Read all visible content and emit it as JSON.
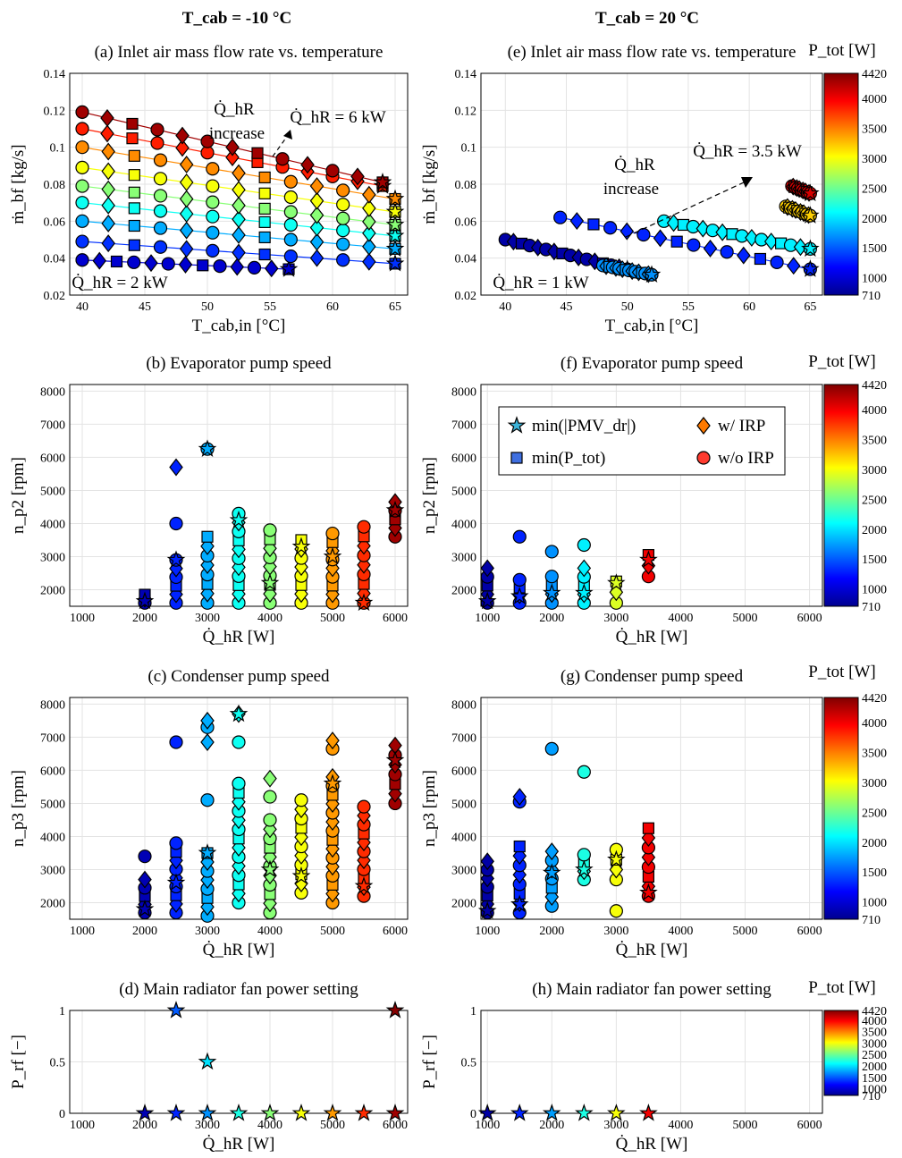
{
  "headers": {
    "left": "T_cab = -10 °C",
    "right": "T_cab = 20 °C"
  },
  "colorbar": {
    "label": "P_tot [W]",
    "min": 710,
    "max": 4420,
    "ticks": [
      "4420",
      "4000",
      "3500",
      "3000",
      "2500",
      "2000",
      "1500",
      "1000",
      "710"
    ]
  },
  "legend": {
    "items": [
      "min(|PMV_dr|)",
      "w/ IRP",
      "min(P_tot)",
      "w/o IRP"
    ]
  },
  "chart_data": [
    {
      "id": "a",
      "type": "scatter",
      "title": "(a) Inlet air mass flow rate vs. temperature",
      "xlabel": "T_cab,in [°C]",
      "ylabel": "ṁ_bf [kg/s]",
      "xlim": [
        39,
        66
      ],
      "ylim": [
        0.02,
        0.14
      ],
      "xticks": [
        40,
        45,
        50,
        55,
        60,
        65
      ],
      "yticks": [
        0.02,
        0.04,
        0.06,
        0.08,
        0.1,
        0.12,
        0.14
      ],
      "annotations": [
        "Q̇_hR increase",
        "Q̇_hR = 6 kW",
        "Q̇_hR = 2 kW"
      ],
      "series": [
        {
          "q": 2000,
          "p": 1000,
          "from": [
            40,
            0.039
          ],
          "to": [
            56.5,
            0.034
          ]
        },
        {
          "q": 2500,
          "p": 1350,
          "from": [
            40,
            0.049
          ],
          "to": [
            65,
            0.037
          ]
        },
        {
          "q": 3000,
          "p": 1800,
          "from": [
            40,
            0.06
          ],
          "to": [
            65,
            0.045
          ]
        },
        {
          "q": 3500,
          "p": 2150,
          "from": [
            40,
            0.07
          ],
          "to": [
            65,
            0.052
          ]
        },
        {
          "q": 4000,
          "p": 2600,
          "from": [
            40,
            0.079
          ],
          "to": [
            65,
            0.058
          ]
        },
        {
          "q": 4500,
          "p": 3000,
          "from": [
            40,
            0.089
          ],
          "to": [
            65,
            0.065
          ]
        },
        {
          "q": 5000,
          "p": 3450,
          "from": [
            40,
            0.1
          ],
          "to": [
            65,
            0.072
          ]
        },
        {
          "q": 5500,
          "p": 3850,
          "from": [
            40,
            0.11
          ],
          "to": [
            64,
            0.079
          ]
        },
        {
          "q": 6000,
          "p": 4300,
          "from": [
            40,
            0.119
          ],
          "to": [
            64,
            0.081
          ]
        }
      ]
    },
    {
      "id": "e",
      "type": "scatter",
      "title": "(e) Inlet air mass flow rate vs. temperature",
      "xlabel": "T_cab,in [°C]",
      "ylabel": "ṁ_bf [kg/s]",
      "xlim": [
        38,
        66
      ],
      "ylim": [
        0.02,
        0.14
      ],
      "xticks": [
        40,
        45,
        50,
        55,
        60,
        65
      ],
      "yticks": [
        0.02,
        0.04,
        0.06,
        0.08,
        0.1,
        0.12,
        0.14
      ],
      "annotations": [
        "Q̇_hR increase",
        "Q̇_hR = 3.5 kW",
        "Q̇_hR = 1 kW"
      ],
      "series": [
        {
          "q": 1000,
          "p": 850,
          "from": [
            40,
            0.05
          ],
          "to": [
            50,
            0.034
          ]
        },
        {
          "q": 1500,
          "p": 1300,
          "from": [
            44.5,
            0.062
          ],
          "to": [
            65,
            0.034
          ]
        },
        {
          "q": 2000,
          "p": 1700,
          "from": [
            48,
            0.036
          ],
          "to": [
            52,
            0.031
          ]
        },
        {
          "q": 2500,
          "p": 2050,
          "from": [
            53,
            0.06
          ],
          "to": [
            65,
            0.045
          ]
        },
        {
          "q": 3000,
          "p": 3200,
          "from": [
            63,
            0.068
          ],
          "to": [
            65,
            0.063
          ]
        },
        {
          "q": 3500,
          "p": 4100,
          "from": [
            63.5,
            0.079
          ],
          "to": [
            65,
            0.075
          ]
        }
      ]
    },
    {
      "id": "b",
      "type": "scatter",
      "title": "(b) Evaporator pump speed",
      "xlabel": "Q̇_hR [W]",
      "ylabel": "n_p2 [rpm]",
      "xlim": [
        800,
        6200
      ],
      "ylim": [
        1500,
        8200
      ],
      "xticks": [
        1000,
        2000,
        3000,
        4000,
        5000,
        6000
      ],
      "yticks": [
        2000,
        3000,
        4000,
        5000,
        6000,
        7000,
        8000
      ],
      "columns": [
        {
          "q": 2000,
          "p": 900,
          "lo": 1600,
          "hi": 1850,
          "extra": [],
          "star": 1650
        },
        {
          "q": 2500,
          "p": 1300,
          "lo": 1600,
          "hi": 2900,
          "extra": [
            4000,
            5700
          ],
          "star": 2900
        },
        {
          "q": 3000,
          "p": 1800,
          "lo": 1600,
          "hi": 3600,
          "extra": [
            6250
          ],
          "star": 6250
        },
        {
          "q": 3500,
          "p": 2150,
          "lo": 1600,
          "hi": 4300,
          "extra": [],
          "star": 4100
        },
        {
          "q": 4000,
          "p": 2600,
          "lo": 1600,
          "hi": 3800,
          "extra": [],
          "star": 2200
        },
        {
          "q": 4500,
          "p": 3000,
          "lo": 1600,
          "hi": 3500,
          "extra": [],
          "star": 3300
        },
        {
          "q": 5000,
          "p": 3400,
          "lo": 1600,
          "hi": 3700,
          "extra": [],
          "star": 3000
        },
        {
          "q": 5500,
          "p": 3800,
          "lo": 1600,
          "hi": 3900,
          "extra": [],
          "star": 1600
        },
        {
          "q": 6000,
          "p": 4300,
          "lo": 3600,
          "hi": 4650,
          "extra": [],
          "star": 4400
        }
      ]
    },
    {
      "id": "f",
      "type": "scatter",
      "title": "(f) Evaporator pump speed",
      "xlabel": "Q̇_hR [W]",
      "ylabel": "n_p2 [rpm]",
      "xlim": [
        900,
        6200
      ],
      "ylim": [
        1500,
        8200
      ],
      "xticks": [
        1000,
        2000,
        3000,
        4000,
        5000,
        6000
      ],
      "yticks": [
        2000,
        3000,
        4000,
        5000,
        6000,
        7000,
        8000
      ],
      "columns": [
        {
          "q": 1000,
          "p": 850,
          "lo": 1600,
          "hi": 2650,
          "extra": [],
          "star": 1650
        },
        {
          "q": 1500,
          "p": 1300,
          "lo": 1600,
          "hi": 2300,
          "extra": [
            3600
          ],
          "star": 1800
        },
        {
          "q": 2000,
          "p": 1700,
          "lo": 1600,
          "hi": 2400,
          "extra": [
            3150
          ],
          "star": 1900
        },
        {
          "q": 2500,
          "p": 2050,
          "lo": 1600,
          "hi": 2650,
          "extra": [
            3350
          ],
          "star": 1900
        },
        {
          "q": 3000,
          "p": 2900,
          "lo": 1600,
          "hi": 2250,
          "extra": [],
          "star": 2200
        },
        {
          "q": 3500,
          "p": 4000,
          "lo": 2400,
          "hi": 3050,
          "extra": [],
          "star": 2900
        }
      ]
    },
    {
      "id": "c",
      "type": "scatter",
      "title": "(c) Condenser pump speed",
      "xlabel": "Q̇_hR [W]",
      "ylabel": "n_p3 [rpm]",
      "xlim": [
        800,
        6200
      ],
      "ylim": [
        1500,
        8200
      ],
      "xticks": [
        1000,
        2000,
        3000,
        4000,
        5000,
        6000
      ],
      "yticks": [
        2000,
        3000,
        4000,
        5000,
        6000,
        7000,
        8000
      ],
      "columns": [
        {
          "q": 2000,
          "p": 900,
          "lo": 1700,
          "hi": 2700,
          "extra": [
            3400
          ],
          "star": 1800
        },
        {
          "q": 2500,
          "p": 1300,
          "lo": 1700,
          "hi": 3800,
          "extra": [
            6850
          ],
          "star": 2600
        },
        {
          "q": 3000,
          "p": 1800,
          "lo": 1600,
          "hi": 3500,
          "extra": [
            5100,
            6850,
            7300,
            7500
          ],
          "star": 3500
        },
        {
          "q": 3500,
          "p": 2150,
          "lo": 2000,
          "hi": 5600,
          "extra": [
            6850,
            7700
          ],
          "star": 7700
        },
        {
          "q": 4000,
          "p": 2600,
          "lo": 1700,
          "hi": 4500,
          "extra": [
            5200,
            5750
          ],
          "star": 3000
        },
        {
          "q": 4500,
          "p": 3000,
          "lo": 2300,
          "hi": 5100,
          "extra": [],
          "star": 2800
        },
        {
          "q": 5000,
          "p": 3400,
          "lo": 2000,
          "hi": 5800,
          "extra": [
            6650,
            6900
          ],
          "star": 5600
        },
        {
          "q": 5500,
          "p": 3800,
          "lo": 2200,
          "hi": 4900,
          "extra": [],
          "star": 2500
        },
        {
          "q": 6000,
          "p": 4300,
          "lo": 5000,
          "hi": 6750,
          "extra": [],
          "star": 6300
        }
      ]
    },
    {
      "id": "g",
      "type": "scatter",
      "title": "(g) Condenser pump speed",
      "xlabel": "Q̇_hR [W]",
      "ylabel": "n_p3 [rpm]",
      "xlim": [
        900,
        6200
      ],
      "ylim": [
        1500,
        8200
      ],
      "xticks": [
        1000,
        2000,
        3000,
        4000,
        5000,
        6000
      ],
      "yticks": [
        2000,
        3000,
        4000,
        5000,
        6000,
        7000,
        8000
      ],
      "columns": [
        {
          "q": 1000,
          "p": 850,
          "lo": 1700,
          "hi": 3250,
          "extra": [],
          "star": 1750
        },
        {
          "q": 1500,
          "p": 1300,
          "lo": 1700,
          "hi": 3700,
          "extra": [
            5050,
            5200
          ],
          "star": 1950
        },
        {
          "q": 2000,
          "p": 1750,
          "lo": 1900,
          "hi": 3550,
          "extra": [
            6650
          ],
          "star": 2900
        },
        {
          "q": 2500,
          "p": 2200,
          "lo": 2700,
          "hi": 3450,
          "extra": [
            5950
          ],
          "star": 3000
        },
        {
          "q": 3000,
          "p": 3000,
          "lo": 2700,
          "hi": 3600,
          "extra": [
            1750
          ],
          "star": 3300
        },
        {
          "q": 3500,
          "p": 4000,
          "lo": 2200,
          "hi": 4250,
          "extra": [],
          "star": 2300
        }
      ]
    },
    {
      "id": "d",
      "type": "scatter",
      "title": "(d) Main radiator fan power setting",
      "xlabel": "Q̇_hR [W]",
      "ylabel": "P_rf [−]",
      "xlim": [
        800,
        6200
      ],
      "ylim": [
        0,
        1
      ],
      "xticks": [
        1000,
        2000,
        3000,
        4000,
        5000,
        6000
      ],
      "yticks": [
        0,
        0.5,
        1
      ],
      "points": [
        [
          2000,
          0,
          900
        ],
        [
          2500,
          0,
          1300
        ],
        [
          2500,
          1,
          1500
        ],
        [
          3000,
          0,
          1700
        ],
        [
          3000,
          0.5,
          2000
        ],
        [
          3500,
          0,
          2200
        ],
        [
          4000,
          0,
          2600
        ],
        [
          4500,
          0,
          3000
        ],
        [
          5000,
          0,
          3400
        ],
        [
          5500,
          0,
          3800
        ],
        [
          6000,
          0,
          4300
        ],
        [
          6000,
          1,
          4400
        ]
      ]
    },
    {
      "id": "h",
      "type": "scatter",
      "title": "(h) Main radiator fan power setting",
      "xlabel": "Q̇_hR [W]",
      "ylabel": "P_rf [−]",
      "xlim": [
        900,
        6200
      ],
      "ylim": [
        0,
        1
      ],
      "xticks": [
        1000,
        2000,
        3000,
        4000,
        5000,
        6000
      ],
      "yticks": [
        0,
        0.5,
        1
      ],
      "points": [
        [
          1000,
          0,
          850
        ],
        [
          1500,
          0,
          1300
        ],
        [
          2000,
          0,
          1750
        ],
        [
          2500,
          0,
          2200
        ],
        [
          3000,
          0,
          3000
        ],
        [
          3500,
          0,
          4000
        ]
      ]
    }
  ]
}
